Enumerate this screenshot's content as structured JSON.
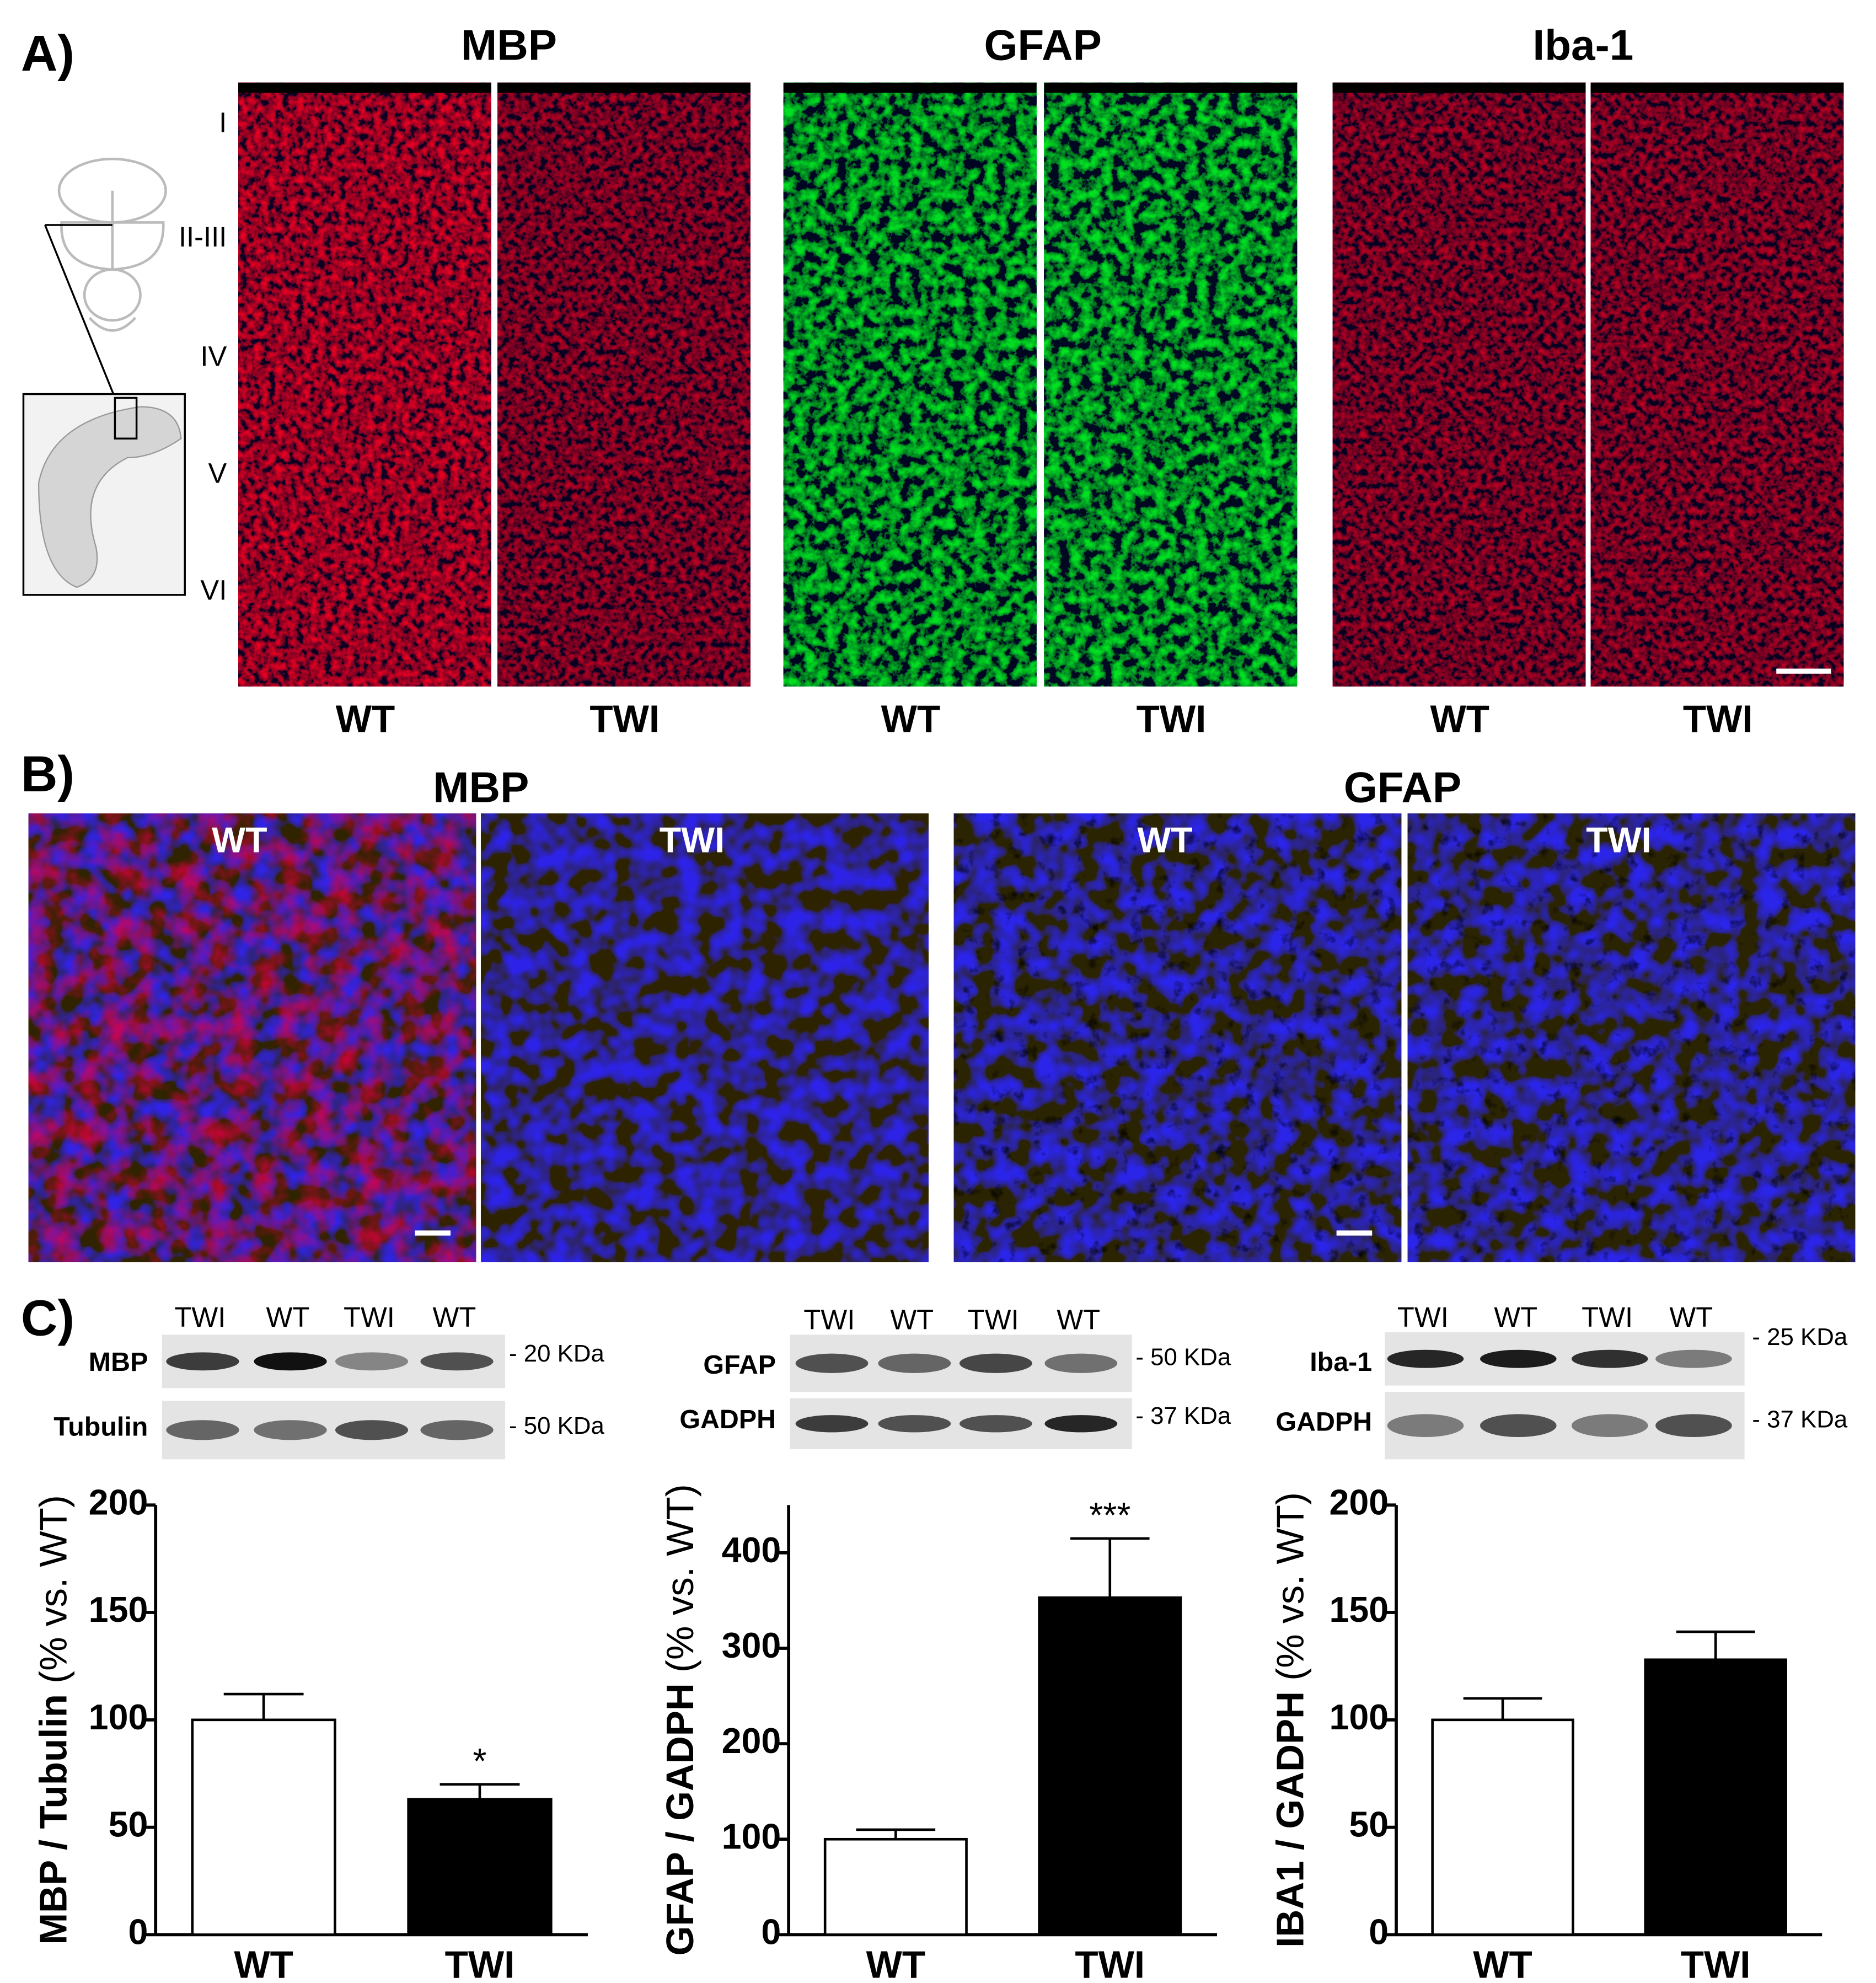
{
  "panel_a": {
    "label": "A)",
    "stains": [
      "MBP",
      "GFAP",
      "Iba-1"
    ],
    "conditions": [
      "WT",
      "TWI",
      "WT",
      "TWI",
      "WT",
      "TWI"
    ],
    "layers": [
      "I",
      "II-III",
      "IV",
      "V",
      "VI"
    ]
  },
  "panel_b": {
    "label": "B)",
    "stains": [
      "MBP",
      "GFAP"
    ],
    "conditions": [
      "WT",
      "TWI",
      "WT",
      "TWI"
    ]
  },
  "panel_c": {
    "label": "C)",
    "blots": [
      {
        "lanes": [
          "TWI",
          "WT",
          "TWI",
          "WT"
        ],
        "rows": [
          {
            "name": "MBP",
            "marker": "- 20 KDa"
          },
          {
            "name": "Tubulin",
            "marker": "- 50 KDa"
          }
        ]
      },
      {
        "lanes": [
          "TWI",
          "WT",
          "TWI",
          "WT"
        ],
        "rows": [
          {
            "name": "GFAP",
            "marker": "- 50  KDa"
          },
          {
            "name": "GADPH",
            "marker": "- 37 KDa"
          }
        ]
      },
      {
        "lanes": [
          "TWI",
          "WT",
          "TWI",
          "WT"
        ],
        "rows": [
          {
            "name": "Iba-1",
            "marker": "- 25 KDa"
          },
          {
            "name": "GADPH",
            "marker": "- 37 KDa"
          }
        ]
      }
    ]
  },
  "chart_data": [
    {
      "type": "bar",
      "ylabel": "MBP / Tubulin",
      "ylabel_note": "(% vs. WT)",
      "categories": [
        "WT",
        "TWI"
      ],
      "values": [
        100,
        63
      ],
      "errors": [
        12,
        7
      ],
      "colors": [
        "#ffffff",
        "#000000"
      ],
      "ylim": [
        0,
        200
      ],
      "yticks": [
        0,
        50,
        100,
        150,
        200
      ],
      "annotations": [
        {
          "text": "*",
          "x": "TWI"
        }
      ]
    },
    {
      "type": "bar",
      "ylabel": "GFAP / GADPH",
      "ylabel_note": "(% vs. WT)",
      "categories": [
        "WT",
        "TWI"
      ],
      "values": [
        100,
        353
      ],
      "errors": [
        10,
        62
      ],
      "colors": [
        "#ffffff",
        "#000000"
      ],
      "ylim": [
        0,
        450
      ],
      "yticks": [
        0,
        100,
        200,
        300,
        400
      ],
      "annotations": [
        {
          "text": "***",
          "x": "TWI"
        }
      ]
    },
    {
      "type": "bar",
      "ylabel": "IBA1 / GADPH",
      "ylabel_note": "(% vs. WT)",
      "categories": [
        "WT",
        "TWI"
      ],
      "values": [
        100,
        128
      ],
      "errors": [
        10,
        13
      ],
      "colors": [
        "#ffffff",
        "#000000"
      ],
      "ylim": [
        0,
        200
      ],
      "yticks": [
        0,
        50,
        100,
        150,
        200
      ]
    }
  ]
}
